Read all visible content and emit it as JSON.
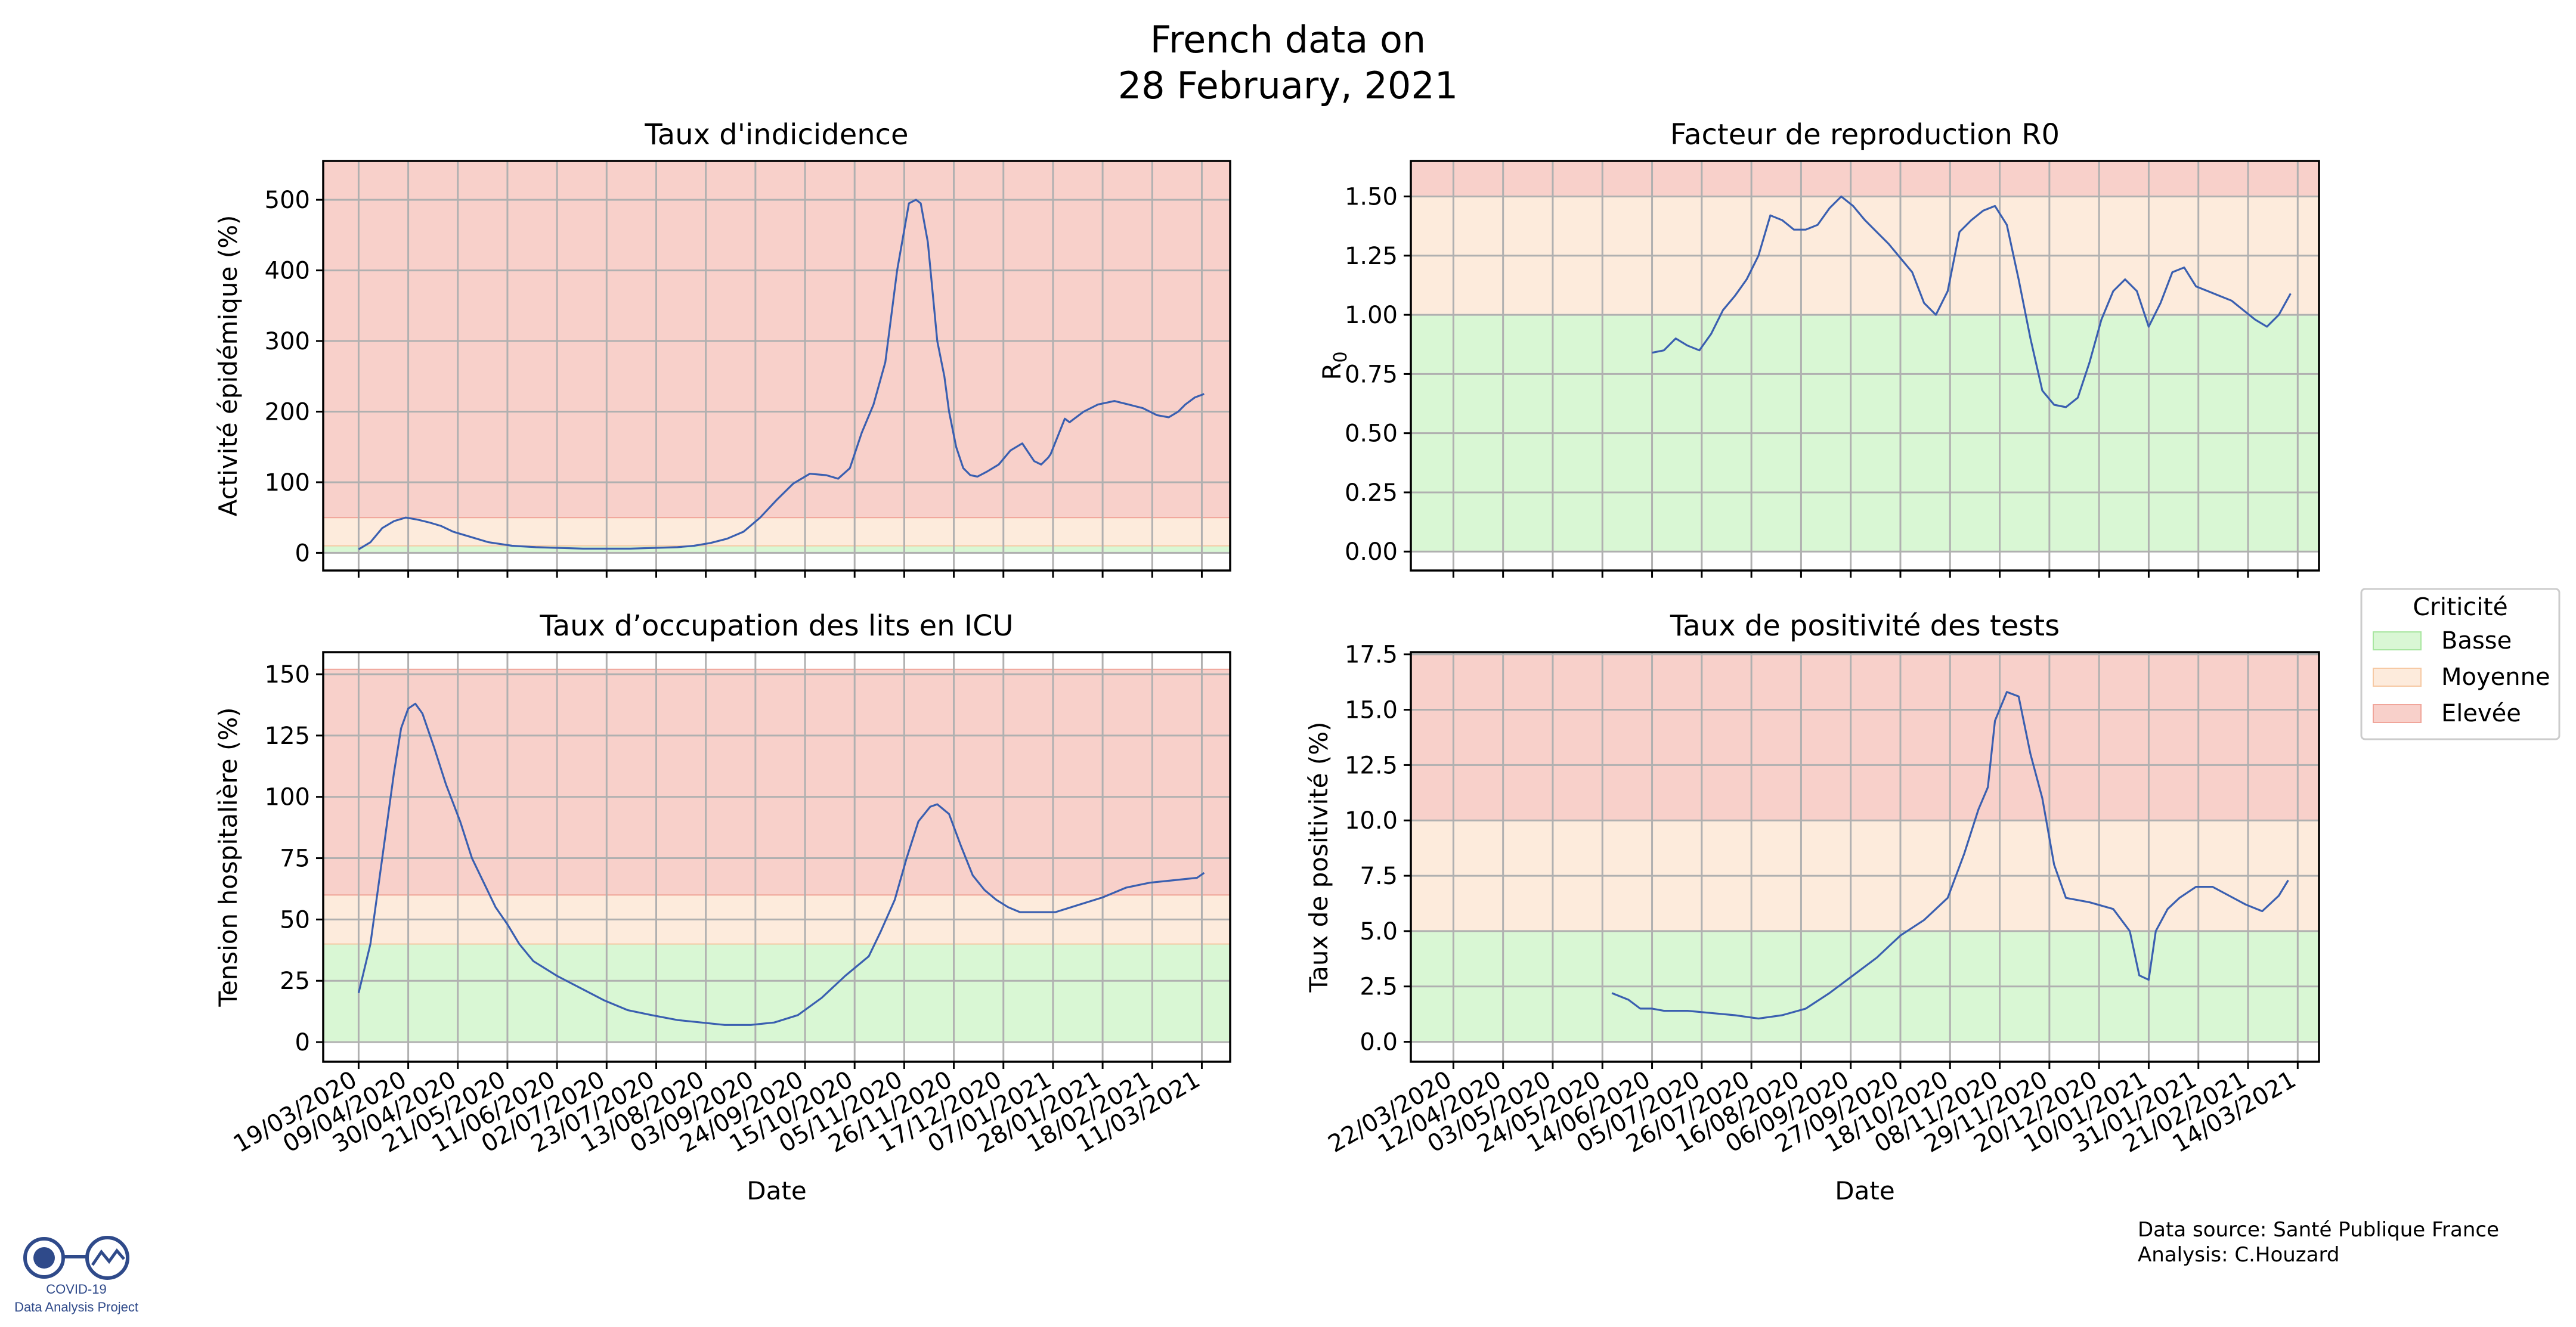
{
  "figure": {
    "title_line1": "French data on",
    "title_line2": "28 February, 2021",
    "source_line1": "Data source: Santé Publique France",
    "source_line2": "Analysis: C.Houzard",
    "logo_line1": "COVID-19",
    "logo_line2": "Data Analysis Project"
  },
  "legend": {
    "title": "Criticité",
    "items": [
      {
        "label": "Basse",
        "color": "#d9f7d4",
        "edge": "#a8e6a0"
      },
      {
        "label": "Moyenne",
        "color": "#fdebdc",
        "edge": "#f6c9a4"
      },
      {
        "label": "Elevée",
        "color": "#f8d0ca",
        "edge": "#f0a59a"
      }
    ]
  },
  "colors": {
    "line": "#3a5fb0",
    "grid": "#b0b0b0",
    "green": "#d9f7d4",
    "orange": "#fdebdc",
    "red": "#f8d0ca"
  },
  "chart_data": [
    {
      "type": "line",
      "title": "Taux d'indicidence",
      "xlabel": "",
      "ylabel": "Activité épidémique (%)",
      "xlim": [
        "2020-03-04",
        "2021-03-23"
      ],
      "ylim": [
        -25,
        555
      ],
      "yticks": [
        0,
        100,
        200,
        300,
        400,
        500
      ],
      "ytick_labels": [
        "0",
        "100",
        "200",
        "300",
        "400",
        "500"
      ],
      "xtick_labels": [],
      "grid": true,
      "bands": [
        {
          "level": "Basse",
          "from": 0,
          "to": 10
        },
        {
          "level": "Moyenne",
          "from": 10,
          "to": 50
        },
        {
          "level": "Elevée",
          "from": 50,
          "to": 555
        }
      ],
      "series": [
        {
          "x": [
            "2020-03-19",
            "2020-03-24",
            "2020-03-29",
            "2020-04-03",
            "2020-04-08",
            "2020-04-13",
            "2020-04-18",
            "2020-04-23",
            "2020-04-28",
            "2020-05-03",
            "2020-05-13",
            "2020-05-23",
            "2020-06-02",
            "2020-06-12",
            "2020-06-22",
            "2020-07-02",
            "2020-07-12",
            "2020-07-22",
            "2020-08-01",
            "2020-08-08",
            "2020-08-15",
            "2020-08-22",
            "2020-08-29",
            "2020-09-05",
            "2020-09-12",
            "2020-09-19",
            "2020-09-26",
            "2020-10-03",
            "2020-10-08",
            "2020-10-13",
            "2020-10-18",
            "2020-10-23",
            "2020-10-28",
            "2020-11-02",
            "2020-11-07",
            "2020-11-10",
            "2020-11-12",
            "2020-11-15",
            "2020-11-19",
            "2020-11-22",
            "2020-11-24",
            "2020-11-27",
            "2020-11-30",
            "2020-12-03",
            "2020-12-06",
            "2020-12-10",
            "2020-12-15",
            "2020-12-20",
            "2020-12-25",
            "2020-12-30",
            "2021-01-02",
            "2021-01-05",
            "2021-01-06",
            "2021-01-12",
            "2021-01-14",
            "2021-01-16",
            "2021-01-20",
            "2021-01-26",
            "2021-02-02",
            "2021-02-08",
            "2021-02-14",
            "2021-02-20",
            "2021-02-25",
            "2021-03-01",
            "2021-03-04",
            "2021-03-08",
            "2021-03-12"
          ],
          "y": [
            5,
            15,
            35,
            45,
            50,
            47,
            43,
            38,
            30,
            25,
            15,
            10,
            8,
            7,
            6,
            6,
            6,
            7,
            8,
            10,
            14,
            20,
            30,
            50,
            75,
            98,
            112,
            110,
            105,
            120,
            170,
            210,
            270,
            400,
            495,
            500,
            495,
            440,
            300,
            250,
            200,
            150,
            120,
            110,
            108,
            115,
            125,
            145,
            155,
            130,
            125,
            135,
            140,
            190,
            185,
            190,
            200,
            210,
            215,
            210,
            205,
            195,
            192,
            200,
            210,
            220,
            225
          ]
        }
      ]
    },
    {
      "type": "line",
      "title": "Facteur de reproduction R0",
      "xlabel": "",
      "ylabel": "R0",
      "xlim": [
        "2020-03-04",
        "2021-03-23"
      ],
      "ylim": [
        -0.08,
        1.65
      ],
      "yticks": [
        0,
        0.25,
        0.5,
        0.75,
        1.0,
        1.25,
        1.5
      ],
      "ytick_labels": [
        "0.00",
        "0.25",
        "0.50",
        "0.75",
        "1.00",
        "1.25",
        "1.50"
      ],
      "xtick_labels": [],
      "grid": true,
      "bands": [
        {
          "level": "Basse",
          "from": 0,
          "to": 1.0
        },
        {
          "level": "Moyenne",
          "from": 1.0,
          "to": 1.5
        },
        {
          "level": "Elevée",
          "from": 1.5,
          "to": 1.65
        }
      ],
      "series": [
        {
          "x": [
            "2020-06-14",
            "2020-06-19",
            "2020-06-24",
            "2020-06-29",
            "2020-07-04",
            "2020-07-09",
            "2020-07-14",
            "2020-07-19",
            "2020-07-24",
            "2020-07-29",
            "2020-08-03",
            "2020-08-08",
            "2020-08-13",
            "2020-08-18",
            "2020-08-23",
            "2020-08-28",
            "2020-09-02",
            "2020-09-07",
            "2020-09-12",
            "2020-09-17",
            "2020-09-22",
            "2020-09-27",
            "2020-10-02",
            "2020-10-07",
            "2020-10-12",
            "2020-10-17",
            "2020-10-22",
            "2020-10-27",
            "2020-11-01",
            "2020-11-06",
            "2020-11-11",
            "2020-11-16",
            "2020-11-21",
            "2020-11-26",
            "2020-12-01",
            "2020-12-06",
            "2020-12-11",
            "2020-12-16",
            "2020-12-21",
            "2020-12-26",
            "2020-12-31",
            "2021-01-05",
            "2021-01-10",
            "2021-01-15",
            "2021-01-20",
            "2021-01-25",
            "2021-01-30",
            "2021-02-04",
            "2021-02-09",
            "2021-02-14",
            "2021-02-19",
            "2021-02-24",
            "2021-03-01",
            "2021-03-06",
            "2021-03-11"
          ],
          "y": [
            0.84,
            0.85,
            0.9,
            0.87,
            0.85,
            0.92,
            1.02,
            1.08,
            1.15,
            1.25,
            1.42,
            1.4,
            1.36,
            1.36,
            1.38,
            1.45,
            1.5,
            1.46,
            1.4,
            1.35,
            1.3,
            1.24,
            1.18,
            1.05,
            1.0,
            1.1,
            1.35,
            1.4,
            1.44,
            1.46,
            1.38,
            1.15,
            0.9,
            0.68,
            0.62,
            0.61,
            0.65,
            0.8,
            0.98,
            1.1,
            1.15,
            1.1,
            0.95,
            1.05,
            1.18,
            1.2,
            1.12,
            1.1,
            1.08,
            1.06,
            1.02,
            0.98,
            0.95,
            1.0,
            1.09
          ]
        }
      ]
    },
    {
      "type": "line",
      "title": "Taux d’occupation des lits en ICU",
      "xlabel": "Date",
      "ylabel": "Tension hospitalière (%)",
      "xlim": [
        "2020-03-04",
        "2021-03-23"
      ],
      "ylim": [
        -8,
        159
      ],
      "yticks": [
        0,
        25,
        50,
        75,
        100,
        125,
        150
      ],
      "ytick_labels": [
        "0",
        "25",
        "50",
        "75",
        "100",
        "125",
        "150"
      ],
      "xtick_labels": [
        "19/03/2020",
        "09/04/2020",
        "30/04/2020",
        "21/05/2020",
        "11/06/2020",
        "02/07/2020",
        "23/07/2020",
        "13/08/2020",
        "03/09/2020",
        "24/09/2020",
        "15/10/2020",
        "05/11/2020",
        "26/11/2020",
        "17/12/2020",
        "07/01/2021",
        "28/01/2021",
        "18/02/2021",
        "11/03/2021"
      ],
      "grid": true,
      "bands": [
        {
          "level": "Basse",
          "from": 0,
          "to": 40
        },
        {
          "level": "Moyenne",
          "from": 40,
          "to": 60
        },
        {
          "level": "Elevée",
          "from": 60,
          "to": 152
        }
      ],
      "series": [
        {
          "x": [
            "2020-03-19",
            "2020-03-24",
            "2020-03-29",
            "2020-04-03",
            "2020-04-06",
            "2020-04-09",
            "2020-04-12",
            "2020-04-15",
            "2020-04-20",
            "2020-04-25",
            "2020-05-01",
            "2020-05-06",
            "2020-05-11",
            "2020-05-16",
            "2020-05-21",
            "2020-05-26",
            "2020-06-01",
            "2020-06-11",
            "2020-06-21",
            "2020-07-01",
            "2020-07-11",
            "2020-07-21",
            "2020-08-01",
            "2020-08-11",
            "2020-08-21",
            "2020-09-01",
            "2020-09-11",
            "2020-09-21",
            "2020-10-01",
            "2020-10-11",
            "2020-10-21",
            "2020-10-26",
            "2020-11-01",
            "2020-11-06",
            "2020-11-11",
            "2020-11-16",
            "2020-11-19",
            "2020-11-24",
            "2020-11-29",
            "2020-12-04",
            "2020-12-09",
            "2020-12-14",
            "2020-12-19",
            "2020-12-24",
            "2020-12-29",
            "2021-01-08",
            "2021-01-18",
            "2021-01-28",
            "2021-02-07",
            "2021-02-17",
            "2021-02-27",
            "2021-03-09",
            "2021-03-12"
          ],
          "y": [
            20,
            40,
            75,
            110,
            128,
            136,
            138,
            134,
            120,
            105,
            90,
            75,
            65,
            55,
            48,
            40,
            33,
            27,
            22,
            17,
            13,
            11,
            9,
            8,
            7,
            7,
            8,
            11,
            18,
            27,
            35,
            45,
            58,
            75,
            90,
            96,
            97,
            93,
            80,
            68,
            62,
            58,
            55,
            53,
            53,
            53,
            56,
            59,
            63,
            65,
            66,
            67,
            69
          ]
        }
      ]
    },
    {
      "type": "line",
      "title": "Taux de positivité des tests",
      "xlabel": "Date",
      "ylabel": "Taux de positivité (%)",
      "xlim": [
        "2020-03-04",
        "2021-03-23"
      ],
      "ylim": [
        -0.9,
        17.6
      ],
      "yticks": [
        0,
        2.5,
        5,
        7.5,
        10,
        12.5,
        15,
        17.5
      ],
      "ytick_labels": [
        "0.0",
        "2.5",
        "5.0",
        "7.5",
        "10.0",
        "12.5",
        "15.0",
        "17.5"
      ],
      "xtick_labels": [
        "22/03/2020",
        "12/04/2020",
        "03/05/2020",
        "24/05/2020",
        "14/06/2020",
        "05/07/2020",
        "26/07/2020",
        "16/08/2020",
        "06/09/2020",
        "27/09/2020",
        "18/10/2020",
        "08/11/2020",
        "29/11/2020",
        "20/12/2020",
        "10/01/2021",
        "31/01/2021",
        "21/02/2021",
        "14/03/2021"
      ],
      "grid": true,
      "bands": [
        {
          "level": "Basse",
          "from": 0,
          "to": 5
        },
        {
          "level": "Moyenne",
          "from": 5,
          "to": 10
        },
        {
          "level": "Elevée",
          "from": 10,
          "to": 17.5
        }
      ],
      "series": [
        {
          "x": [
            "2020-05-28",
            "2020-06-04",
            "2020-06-09",
            "2020-06-14",
            "2020-06-19",
            "2020-06-29",
            "2020-07-09",
            "2020-07-19",
            "2020-07-29",
            "2020-08-08",
            "2020-08-18",
            "2020-08-28",
            "2020-09-07",
            "2020-09-17",
            "2020-09-27",
            "2020-10-07",
            "2020-10-17",
            "2020-10-24",
            "2020-10-30",
            "2020-11-03",
            "2020-11-06",
            "2020-11-11",
            "2020-11-16",
            "2020-11-21",
            "2020-11-26",
            "2020-12-01",
            "2020-12-06",
            "2020-12-16",
            "2020-12-26",
            "2021-01-02",
            "2021-01-06",
            "2021-01-10",
            "2021-01-13",
            "2021-01-18",
            "2021-01-23",
            "2021-01-30",
            "2021-02-06",
            "2021-02-13",
            "2021-02-20",
            "2021-02-27",
            "2021-03-06",
            "2021-03-10"
          ],
          "y": [
            2.2,
            1.9,
            1.5,
            1.5,
            1.4,
            1.4,
            1.3,
            1.2,
            1.05,
            1.2,
            1.5,
            2.2,
            3.0,
            3.8,
            4.8,
            5.5,
            6.5,
            8.5,
            10.5,
            11.5,
            14.5,
            15.8,
            15.6,
            13.0,
            11.0,
            8.0,
            6.5,
            6.3,
            6.0,
            5.0,
            3.0,
            2.8,
            5.0,
            6.0,
            6.5,
            7.0,
            7.0,
            6.6,
            6.2,
            5.9,
            6.6,
            7.3
          ]
        }
      ]
    }
  ]
}
